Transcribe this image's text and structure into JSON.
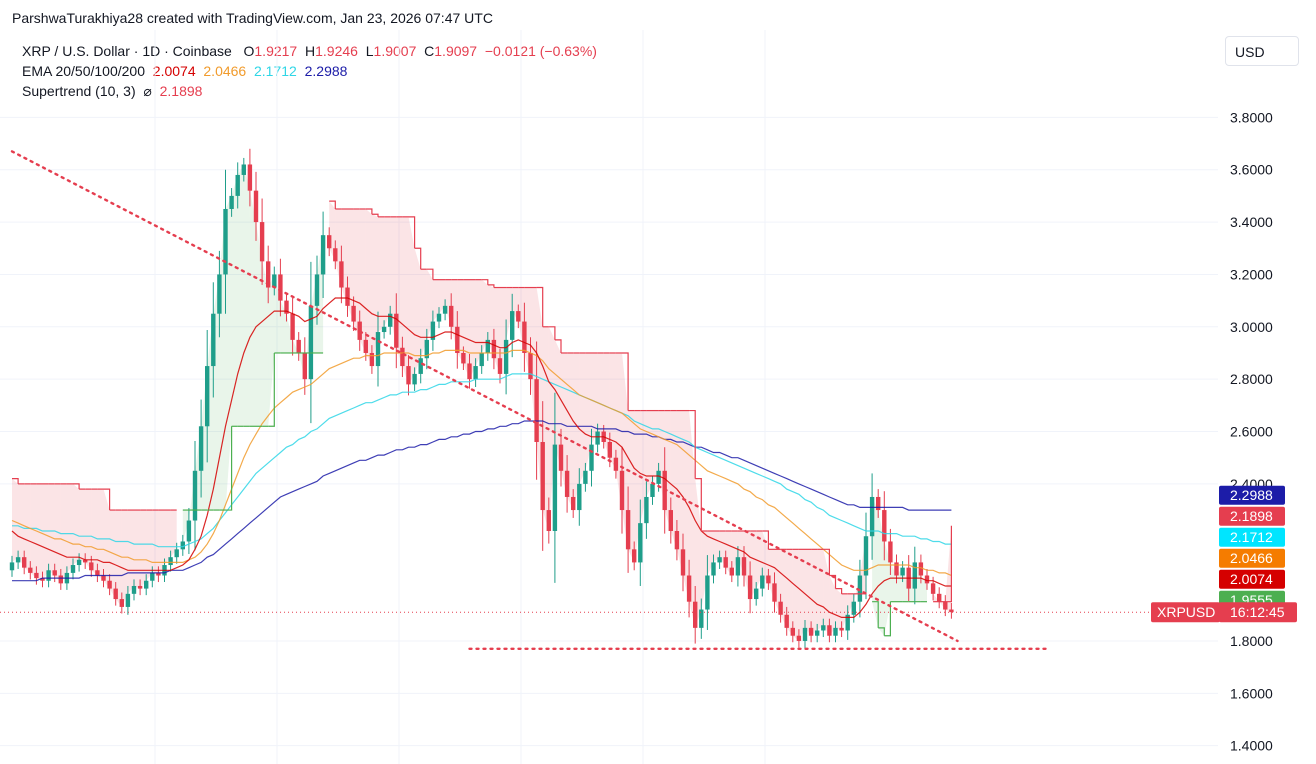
{
  "header": {
    "credit": "ParshwaTurakhiya28 created with TradingView.com, Jan 23, 2026 07:47 UTC",
    "symbol_line": "XRP / U.S. Dollar · 1D · Coinbase",
    "ohlc": {
      "o_label": "O",
      "o": "1.9217",
      "h_label": "H",
      "h": "1.9246",
      "l_label": "L",
      "l": "1.9007",
      "c_label": "C",
      "c": "1.9097",
      "change": "−0.0121 (−0.63%)"
    },
    "ema_label": "EMA 20/50/100/200",
    "ema_values": [
      "2.0074",
      "2.0466",
      "2.1712",
      "2.2988"
    ],
    "supertrend_label": "Supertrend (10, 3)",
    "supertrend_symbol": "⌀",
    "supertrend_value": "2.1898"
  },
  "currency": "USD",
  "colors": {
    "up": "#1f9e8a",
    "down": "#e53e4f",
    "ema20": "#d50000",
    "ema50": "#f19b2c",
    "ema100": "#2fd6e6",
    "ema200": "#1c1ca8",
    "st_down": "#e53e4f",
    "st_up": "#4caf50"
  },
  "chart_data": {
    "type": "candlestick",
    "symbol": "XRPUSD",
    "interval": "1D",
    "ylim": [
      1.33,
      4.0
    ],
    "y_ticks": [
      "3.8000",
      "3.6000",
      "3.4000",
      "3.2000",
      "3.0000",
      "2.8000",
      "2.6000",
      "2.4000",
      "1.8000",
      "1.6000",
      "1.4000"
    ],
    "price_tags": [
      {
        "label": "2.2988",
        "value": 2.2988,
        "color": "#1c1ca8"
      },
      {
        "label": "2.1898",
        "value": 2.1898,
        "color": "#e53e4f"
      },
      {
        "label": "2.1712",
        "value": 2.1712,
        "color": "#00e5ff"
      },
      {
        "label": "2.0466",
        "value": 2.0466,
        "color": "#f57c00"
      },
      {
        "label": "2.0074",
        "value": 2.0074,
        "color": "#d50000"
      },
      {
        "label": "1.9555",
        "value": 1.9555,
        "color": "#4caf50"
      }
    ],
    "last_price": {
      "symbol_label": "XRPUSD",
      "countdown": "16:12:45",
      "value": 1.9097
    },
    "trendlines": [
      {
        "style": "dotted",
        "from": [
          0,
          3.67
        ],
        "to": [
          155,
          1.8
        ]
      },
      {
        "style": "dotted",
        "from": [
          75,
          1.77
        ],
        "to": [
          170,
          1.77
        ]
      }
    ],
    "closes": [
      2.1,
      2.12,
      2.08,
      2.06,
      2.04,
      2.03,
      2.07,
      2.05,
      2.02,
      2.06,
      2.09,
      2.11,
      2.1,
      2.07,
      2.05,
      2.03,
      2.0,
      1.96,
      1.93,
      1.98,
      2.01,
      2.0,
      2.03,
      2.06,
      2.05,
      2.09,
      2.12,
      2.15,
      2.18,
      2.26,
      2.45,
      2.62,
      2.85,
      3.05,
      3.2,
      3.45,
      3.5,
      3.58,
      3.62,
      3.52,
      3.4,
      3.25,
      3.15,
      3.2,
      3.1,
      3.05,
      2.95,
      2.9,
      2.8,
      3.08,
      3.2,
      3.35,
      3.3,
      3.25,
      3.15,
      3.08,
      3.02,
      2.95,
      2.9,
      2.85,
      2.98,
      3.0,
      3.05,
      2.92,
      2.85,
      2.78,
      2.82,
      2.88,
      2.95,
      3.02,
      3.05,
      3.08,
      3.0,
      2.9,
      2.86,
      2.8,
      2.85,
      2.9,
      2.95,
      2.88,
      2.82,
      2.95,
      3.06,
      3.02,
      2.9,
      2.8,
      2.56,
      2.3,
      2.22,
      2.55,
      2.45,
      2.35,
      2.3,
      2.4,
      2.45,
      2.55,
      2.6,
      2.56,
      2.5,
      2.45,
      2.3,
      2.15,
      2.1,
      2.25,
      2.35,
      2.4,
      2.45,
      2.3,
      2.22,
      2.15,
      2.05,
      1.95,
      1.85,
      1.92,
      2.05,
      2.1,
      2.12,
      2.08,
      2.05,
      2.12,
      2.05,
      1.96,
      2.0,
      2.05,
      2.02,
      1.95,
      1.9,
      1.85,
      1.82,
      1.8,
      1.85,
      1.82,
      1.84,
      1.86,
      1.82,
      1.85,
      1.84,
      1.9,
      1.95,
      2.05,
      2.2,
      2.35,
      2.3,
      2.18,
      2.1,
      2.05,
      2.08,
      2.0,
      2.1,
      2.05,
      2.02,
      1.98,
      1.95,
      1.92,
      1.91
    ],
    "ema20": [
      2.22,
      2.2,
      2.19,
      2.18,
      2.17,
      2.16,
      2.15,
      2.14,
      2.13,
      2.12,
      2.12,
      2.12,
      2.11,
      2.11,
      2.11,
      2.1,
      2.1,
      2.09,
      2.08,
      2.07,
      2.07,
      2.07,
      2.07,
      2.07,
      2.07,
      2.07,
      2.07,
      2.08,
      2.09,
      2.11,
      2.15,
      2.2,
      2.28,
      2.38,
      2.5,
      2.62,
      2.72,
      2.82,
      2.9,
      2.96,
      3.0,
      3.02,
      3.04,
      3.06,
      3.06,
      3.06,
      3.05,
      3.04,
      3.02,
      3.03,
      3.04,
      3.07,
      3.09,
      3.11,
      3.11,
      3.11,
      3.1,
      3.09,
      3.07,
      3.05,
      3.04,
      3.04,
      3.04,
      3.03,
      3.01,
      2.99,
      2.97,
      2.96,
      2.96,
      2.96,
      2.97,
      2.98,
      2.98,
      2.97,
      2.96,
      2.95,
      2.94,
      2.94,
      2.94,
      2.93,
      2.92,
      2.92,
      2.94,
      2.95,
      2.94,
      2.93,
      2.9,
      2.85,
      2.79,
      2.76,
      2.72,
      2.68,
      2.64,
      2.61,
      2.59,
      2.58,
      2.58,
      2.58,
      2.57,
      2.56,
      2.54,
      2.5,
      2.46,
      2.44,
      2.43,
      2.43,
      2.43,
      2.42,
      2.4,
      2.38,
      2.35,
      2.31,
      2.26,
      2.22,
      2.2,
      2.19,
      2.18,
      2.17,
      2.16,
      2.15,
      2.14,
      2.12,
      2.11,
      2.1,
      2.09,
      2.08,
      2.06,
      2.04,
      2.02,
      2.0,
      1.98,
      1.96,
      1.94,
      1.93,
      1.91,
      1.9,
      1.89,
      1.89,
      1.89,
      1.91,
      1.94,
      1.98,
      2.01,
      2.03,
      2.04,
      2.04,
      2.04,
      2.04,
      2.04,
      2.04,
      2.03,
      2.03,
      2.02,
      2.01,
      2.01
    ],
    "ema50": [
      2.26,
      2.25,
      2.24,
      2.23,
      2.22,
      2.21,
      2.2,
      2.19,
      2.19,
      2.18,
      2.17,
      2.17,
      2.16,
      2.16,
      2.15,
      2.15,
      2.14,
      2.13,
      2.12,
      2.12,
      2.11,
      2.11,
      2.11,
      2.1,
      2.1,
      2.1,
      2.1,
      2.1,
      2.1,
      2.11,
      2.12,
      2.14,
      2.17,
      2.21,
      2.26,
      2.32,
      2.38,
      2.44,
      2.5,
      2.55,
      2.59,
      2.63,
      2.66,
      2.69,
      2.71,
      2.73,
      2.75,
      2.76,
      2.77,
      2.78,
      2.8,
      2.82,
      2.84,
      2.85,
      2.86,
      2.87,
      2.88,
      2.88,
      2.89,
      2.89,
      2.89,
      2.9,
      2.9,
      2.9,
      2.9,
      2.9,
      2.89,
      2.89,
      2.89,
      2.9,
      2.9,
      2.91,
      2.91,
      2.91,
      2.91,
      2.9,
      2.9,
      2.9,
      2.9,
      2.9,
      2.9,
      2.9,
      2.91,
      2.91,
      2.91,
      2.9,
      2.89,
      2.87,
      2.84,
      2.82,
      2.8,
      2.78,
      2.76,
      2.74,
      2.73,
      2.72,
      2.71,
      2.7,
      2.69,
      2.68,
      2.67,
      2.65,
      2.63,
      2.61,
      2.6,
      2.59,
      2.58,
      2.57,
      2.56,
      2.55,
      2.53,
      2.51,
      2.49,
      2.47,
      2.45,
      2.44,
      2.43,
      2.42,
      2.41,
      2.4,
      2.38,
      2.37,
      2.35,
      2.34,
      2.32,
      2.31,
      2.29,
      2.27,
      2.25,
      2.23,
      2.21,
      2.19,
      2.17,
      2.15,
      2.13,
      2.11,
      2.09,
      2.08,
      2.07,
      2.07,
      2.07,
      2.08,
      2.09,
      2.09,
      2.09,
      2.09,
      2.09,
      2.09,
      2.08,
      2.08,
      2.07,
      2.07,
      2.06,
      2.06,
      2.05
    ],
    "ema100": [
      2.24,
      2.24,
      2.23,
      2.23,
      2.23,
      2.22,
      2.22,
      2.22,
      2.21,
      2.21,
      2.21,
      2.2,
      2.2,
      2.2,
      2.19,
      2.19,
      2.19,
      2.18,
      2.18,
      2.18,
      2.17,
      2.17,
      2.17,
      2.17,
      2.16,
      2.16,
      2.16,
      2.16,
      2.16,
      2.17,
      2.18,
      2.19,
      2.21,
      2.23,
      2.26,
      2.29,
      2.32,
      2.35,
      2.38,
      2.41,
      2.44,
      2.46,
      2.48,
      2.5,
      2.52,
      2.54,
      2.55,
      2.57,
      2.58,
      2.6,
      2.61,
      2.63,
      2.65,
      2.66,
      2.67,
      2.68,
      2.69,
      2.7,
      2.71,
      2.71,
      2.72,
      2.73,
      2.74,
      2.74,
      2.75,
      2.75,
      2.75,
      2.76,
      2.76,
      2.77,
      2.78,
      2.78,
      2.79,
      2.79,
      2.79,
      2.79,
      2.8,
      2.8,
      2.8,
      2.8,
      2.8,
      2.81,
      2.82,
      2.82,
      2.82,
      2.82,
      2.81,
      2.8,
      2.79,
      2.78,
      2.77,
      2.76,
      2.75,
      2.74,
      2.73,
      2.72,
      2.71,
      2.7,
      2.69,
      2.68,
      2.67,
      2.66,
      2.64,
      2.63,
      2.62,
      2.61,
      2.61,
      2.6,
      2.59,
      2.58,
      2.57,
      2.56,
      2.54,
      2.53,
      2.52,
      2.51,
      2.5,
      2.49,
      2.48,
      2.47,
      2.46,
      2.45,
      2.44,
      2.43,
      2.42,
      2.41,
      2.4,
      2.38,
      2.37,
      2.36,
      2.34,
      2.33,
      2.31,
      2.3,
      2.28,
      2.27,
      2.26,
      2.25,
      2.24,
      2.23,
      2.22,
      2.22,
      2.22,
      2.21,
      2.21,
      2.21,
      2.2,
      2.2,
      2.2,
      2.19,
      2.19,
      2.18,
      2.18,
      2.17,
      2.17
    ],
    "ema200": [
      2.03,
      2.03,
      2.03,
      2.03,
      2.03,
      2.04,
      2.04,
      2.04,
      2.04,
      2.04,
      2.04,
      2.04,
      2.05,
      2.05,
      2.05,
      2.05,
      2.05,
      2.05,
      2.05,
      2.06,
      2.06,
      2.06,
      2.06,
      2.06,
      2.06,
      2.06,
      2.07,
      2.07,
      2.07,
      2.08,
      2.09,
      2.1,
      2.12,
      2.13,
      2.15,
      2.17,
      2.19,
      2.21,
      2.23,
      2.25,
      2.27,
      2.29,
      2.31,
      2.33,
      2.35,
      2.36,
      2.37,
      2.38,
      2.39,
      2.4,
      2.41,
      2.43,
      2.44,
      2.45,
      2.46,
      2.47,
      2.48,
      2.49,
      2.49,
      2.5,
      2.51,
      2.51,
      2.52,
      2.53,
      2.53,
      2.54,
      2.54,
      2.55,
      2.55,
      2.56,
      2.57,
      2.57,
      2.58,
      2.58,
      2.59,
      2.59,
      2.6,
      2.6,
      2.61,
      2.61,
      2.62,
      2.62,
      2.63,
      2.63,
      2.64,
      2.64,
      2.64,
      2.64,
      2.63,
      2.63,
      2.63,
      2.62,
      2.62,
      2.62,
      2.62,
      2.62,
      2.61,
      2.61,
      2.61,
      2.61,
      2.6,
      2.6,
      2.59,
      2.59,
      2.59,
      2.58,
      2.58,
      2.57,
      2.57,
      2.56,
      2.56,
      2.55,
      2.54,
      2.54,
      2.53,
      2.52,
      2.52,
      2.51,
      2.5,
      2.5,
      2.49,
      2.48,
      2.47,
      2.46,
      2.45,
      2.44,
      2.43,
      2.42,
      2.41,
      2.4,
      2.39,
      2.38,
      2.37,
      2.36,
      2.35,
      2.34,
      2.33,
      2.32,
      2.32,
      2.31,
      2.31,
      2.31,
      2.31,
      2.31,
      2.31,
      2.31,
      2.31,
      2.3,
      2.3,
      2.3,
      2.3,
      2.3,
      2.3,
      2.3,
      2.3
    ],
    "supertrend": [
      2.42,
      2.4,
      2.4,
      2.4,
      2.4,
      2.4,
      2.4,
      2.4,
      2.4,
      2.4,
      2.4,
      2.38,
      2.38,
      2.38,
      2.38,
      2.38,
      2.3,
      2.3,
      2.3,
      2.3,
      2.3,
      2.3,
      2.3,
      2.3,
      2.3,
      2.3,
      2.3,
      2.3,
      2.3,
      2.3,
      2.3,
      2.3,
      2.3,
      2.3,
      2.3,
      2.3,
      2.62,
      2.62,
      2.62,
      2.62,
      2.62,
      2.62,
      2.62,
      2.9,
      2.9,
      2.9,
      2.9,
      2.9,
      2.9,
      2.9,
      2.9,
      2.9,
      3.48,
      3.45,
      3.45,
      3.45,
      3.45,
      3.45,
      3.45,
      3.43,
      3.42,
      3.42,
      3.42,
      3.42,
      3.42,
      3.42,
      3.3,
      3.22,
      3.22,
      3.18,
      3.18,
      3.18,
      3.18,
      3.18,
      3.18,
      3.18,
      3.18,
      3.18,
      3.16,
      3.15,
      3.15,
      3.15,
      3.15,
      3.15,
      3.15,
      3.15,
      3.15,
      3.0,
      3.0,
      2.95,
      2.9,
      2.9,
      2.9,
      2.9,
      2.9,
      2.9,
      2.9,
      2.9,
      2.9,
      2.9,
      2.9,
      2.68,
      2.68,
      2.68,
      2.68,
      2.68,
      2.68,
      2.68,
      2.68,
      2.68,
      2.68,
      2.68,
      2.42,
      2.22,
      2.22,
      2.22,
      2.22,
      2.22,
      2.22,
      2.22,
      2.22,
      2.22,
      2.22,
      2.22,
      2.15,
      2.15,
      2.15,
      2.15,
      2.15,
      2.15,
      2.15,
      2.15,
      2.15,
      2.15,
      2.05,
      2.0,
      1.98,
      1.98,
      1.98,
      1.98,
      1.98,
      1.95,
      1.85,
      1.82,
      1.95,
      1.95,
      1.95,
      1.95,
      1.95,
      1.95,
      1.95,
      1.95,
      1.95,
      1.95,
      2.24,
      2.24,
      2.2,
      2.19,
      2.19
    ],
    "supertrend_direction": [
      "down",
      "down",
      "down",
      "down",
      "down",
      "down",
      "down",
      "down",
      "down",
      "down",
      "down",
      "down",
      "down",
      "down",
      "down",
      "down",
      "down",
      "down",
      "down",
      "down",
      "down",
      "down",
      "down",
      "down",
      "down",
      "down",
      "down",
      "down",
      "up",
      "up",
      "up",
      "up",
      "up",
      "up",
      "up",
      "up",
      "up",
      "up",
      "up",
      "up",
      "up",
      "up",
      "up",
      "up",
      "up",
      "up",
      "up",
      "up",
      "up",
      "up",
      "up",
      "up",
      "down",
      "down",
      "down",
      "down",
      "down",
      "down",
      "down",
      "down",
      "down",
      "down",
      "down",
      "down",
      "down",
      "down",
      "down",
      "down",
      "down",
      "down",
      "down",
      "down",
      "down",
      "down",
      "down",
      "down",
      "down",
      "down",
      "down",
      "down",
      "down",
      "down",
      "down",
      "down",
      "down",
      "down",
      "down",
      "down",
      "down",
      "down",
      "down",
      "down",
      "down",
      "down",
      "down",
      "down",
      "down",
      "down",
      "down",
      "down",
      "down",
      "down",
      "down",
      "down",
      "down",
      "down",
      "down",
      "down",
      "down",
      "down",
      "down",
      "down",
      "down",
      "down",
      "down",
      "down",
      "down",
      "down",
      "down",
      "down",
      "down",
      "down",
      "down",
      "down",
      "down",
      "down",
      "down",
      "down",
      "down",
      "down",
      "down",
      "down",
      "down",
      "down",
      "down",
      "down",
      "down",
      "down",
      "down",
      "down",
      "down",
      "up",
      "up",
      "up",
      "up",
      "up",
      "up",
      "up",
      "up",
      "up",
      "up",
      "down",
      "down",
      "down",
      "down",
      "down"
    ]
  }
}
